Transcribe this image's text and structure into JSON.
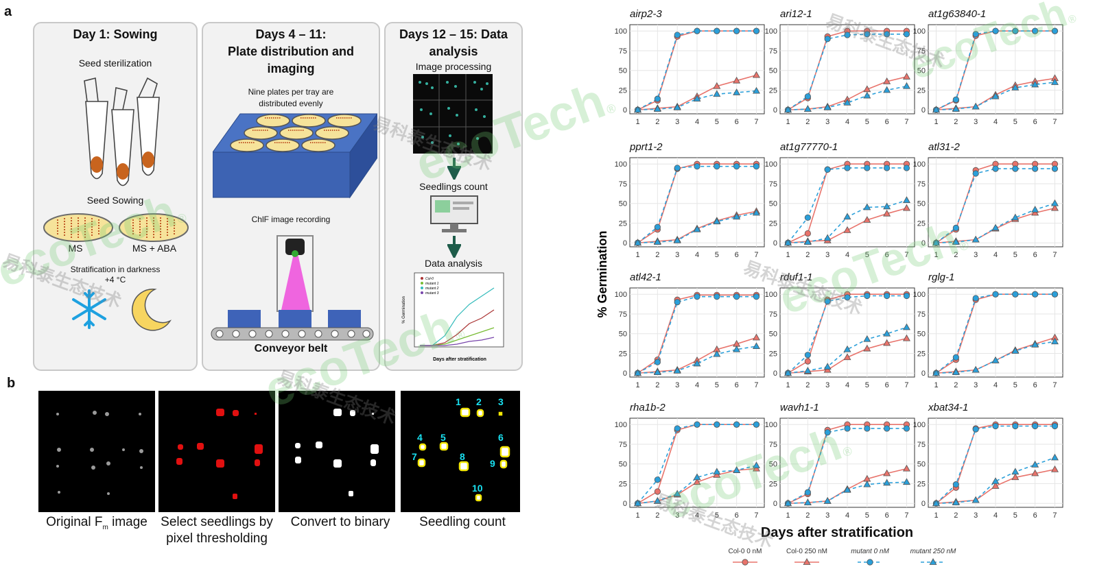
{
  "figure": {
    "panel_a_label": "a",
    "panel_b_label": "b"
  },
  "day1": {
    "title": "Day 1: Sowing",
    "seed_sterilization": "Seed sterilization",
    "seed_sowing": "Seed Sowing",
    "plate_ms": "MS",
    "plate_ms_aba": "MS + ABA",
    "stratification": "Stratification in darkness",
    "temperature": "+4 °C"
  },
  "day4": {
    "title_line1": "Days 4 – 11:",
    "title_line2": "Plate distribution and",
    "title_line3": "imaging",
    "plates_line1": "Nine plates per tray are",
    "plates_line2": "distributed evenly",
    "chlf": "ChlF image recording",
    "conveyor": "Conveyor belt"
  },
  "day12": {
    "title_line1": "Days 12 – 15: Data",
    "title_line2": "analysis",
    "image_processing": "Image processing",
    "seedlings_count": "Seedlings count",
    "data_analysis": "Data analysis",
    "mini_ylabel": "% Germination",
    "mini_xlabel": "Days after stratification",
    "mini_legend": [
      "Col-0",
      "mutant 1",
      "mutant 2",
      "mutant 3"
    ]
  },
  "panel_b": {
    "captions": [
      "Original F",
      "Select seedlings by pixel thresholding",
      "Convert to binary",
      "Seedling count"
    ],
    "fm_sub": "m",
    "fm_suffix": " image",
    "seedling_numbers": [
      "1",
      "2",
      "3",
      "4",
      "5",
      "6",
      "7",
      "8",
      "9",
      "10"
    ]
  },
  "chart_data": {
    "type": "line",
    "x": [
      1,
      2,
      3,
      4,
      5,
      6,
      7
    ],
    "xlabel": "Days after stratification",
    "ylabel": "% Germination",
    "ylim": [
      0,
      100
    ],
    "yticks": [
      0,
      25,
      50,
      75,
      100
    ],
    "grid": true,
    "legend_placement": "bottom",
    "legend": [
      {
        "label": "Col-0 0 nM",
        "color": "#e8736b",
        "marker": "circle"
      },
      {
        "label": "Col-0 250 nM",
        "color": "#e8736b",
        "marker": "triangle"
      },
      {
        "label": "mutant 0 nM",
        "color": "#2b9fd9",
        "marker": "circle"
      },
      {
        "label": "mutant 250 nM",
        "color": "#2b9fd9",
        "marker": "triangle"
      }
    ],
    "panels": [
      {
        "title": "airp2-3",
        "series": [
          [
            0,
            12,
            93,
            100,
            100,
            100,
            100
          ],
          [
            0,
            2,
            4,
            17,
            30,
            37,
            44
          ],
          [
            0,
            14,
            95,
            100,
            100,
            100,
            100
          ],
          [
            0,
            1,
            3,
            14,
            20,
            22,
            24
          ]
        ]
      },
      {
        "title": "ari12-1",
        "series": [
          [
            0,
            15,
            93,
            100,
            100,
            100,
            100
          ],
          [
            0,
            1,
            4,
            13,
            26,
            36,
            42
          ],
          [
            0,
            17,
            90,
            95,
            96,
            96,
            96
          ],
          [
            0,
            1,
            3,
            9,
            18,
            25,
            30
          ]
        ]
      },
      {
        "title": "at1g63840-1",
        "series": [
          [
            0,
            12,
            94,
            100,
            100,
            100,
            100
          ],
          [
            0,
            2,
            4,
            19,
            31,
            36,
            40
          ],
          [
            0,
            13,
            96,
            100,
            100,
            100,
            100
          ],
          [
            0,
            1,
            4,
            17,
            28,
            32,
            35
          ]
        ]
      },
      {
        "title": "pprt1-2",
        "series": [
          [
            0,
            17,
            94,
            100,
            100,
            100,
            100
          ],
          [
            0,
            2,
            4,
            18,
            28,
            35,
            40
          ],
          [
            0,
            20,
            95,
            97,
            97,
            97,
            97
          ],
          [
            0,
            1,
            3,
            17,
            27,
            33,
            38
          ]
        ]
      },
      {
        "title": "at1g77770-1",
        "series": [
          [
            0,
            12,
            93,
            100,
            100,
            100,
            100
          ],
          [
            0,
            2,
            3,
            16,
            29,
            37,
            44
          ],
          [
            0,
            32,
            93,
            95,
            95,
            95,
            95
          ],
          [
            0,
            1,
            6,
            33,
            45,
            46,
            54
          ]
        ]
      },
      {
        "title": "atl31-2",
        "series": [
          [
            0,
            17,
            92,
            100,
            100,
            100,
            100
          ],
          [
            0,
            2,
            4,
            18,
            30,
            38,
            44
          ],
          [
            0,
            19,
            88,
            94,
            94,
            94,
            94
          ],
          [
            0,
            1,
            4,
            19,
            32,
            42,
            50
          ]
        ]
      },
      {
        "title": "atl42-1",
        "series": [
          [
            0,
            17,
            93,
            99,
            99,
            99,
            99
          ],
          [
            0,
            2,
            4,
            16,
            30,
            37,
            45
          ],
          [
            0,
            14,
            90,
            97,
            97,
            97,
            97
          ],
          [
            0,
            1,
            3,
            12,
            24,
            30,
            34
          ]
        ]
      },
      {
        "title": "rduf1-1",
        "series": [
          [
            0,
            15,
            93,
            100,
            100,
            100,
            100
          ],
          [
            0,
            2,
            4,
            20,
            31,
            38,
            44
          ],
          [
            0,
            23,
            91,
            96,
            98,
            98,
            98
          ],
          [
            0,
            3,
            8,
            30,
            43,
            50,
            58
          ]
        ]
      },
      {
        "title": "rglg-1",
        "series": [
          [
            0,
            17,
            93,
            100,
            100,
            100,
            100
          ],
          [
            0,
            2,
            4,
            16,
            29,
            37,
            45
          ],
          [
            0,
            20,
            95,
            100,
            100,
            100,
            100
          ],
          [
            0,
            1,
            4,
            16,
            28,
            36,
            40
          ]
        ]
      },
      {
        "title": "rha1b-2",
        "series": [
          [
            0,
            15,
            93,
            100,
            100,
            100,
            100
          ],
          [
            0,
            3,
            11,
            27,
            36,
            42,
            44
          ],
          [
            0,
            30,
            95,
            100,
            100,
            100,
            100
          ],
          [
            0,
            3,
            12,
            33,
            40,
            42,
            48
          ]
        ]
      },
      {
        "title": "wavh1-1",
        "series": [
          [
            0,
            12,
            93,
            100,
            100,
            100,
            100
          ],
          [
            0,
            1,
            3,
            18,
            31,
            38,
            44
          ],
          [
            0,
            14,
            90,
            95,
            95,
            95,
            95
          ],
          [
            0,
            1,
            3,
            17,
            24,
            26,
            27
          ]
        ]
      },
      {
        "title": "xbat34-1",
        "series": [
          [
            0,
            20,
            95,
            100,
            100,
            100,
            100
          ],
          [
            0,
            2,
            4,
            22,
            33,
            38,
            43
          ],
          [
            0,
            24,
            94,
            98,
            98,
            98,
            98
          ],
          [
            0,
            1,
            4,
            28,
            40,
            49,
            58
          ]
        ]
      }
    ]
  },
  "watermarks": {
    "brand": "ecoTech",
    "cn": "易科泰生态技术",
    "reg": "®"
  }
}
